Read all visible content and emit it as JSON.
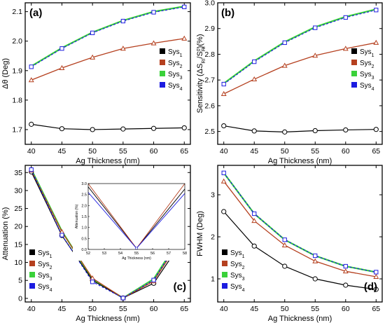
{
  "colors": {
    "sys1": "#000000",
    "sys2": "#b5401f",
    "sys3": "#3ad13a",
    "sys4": "#1c1ce0"
  },
  "chart_data": [
    {
      "type": "line",
      "panel_label": "(a)",
      "xlabel": "Ag Thickness (nm)",
      "ylabel": "Δθ (Deg)",
      "x": [
        40,
        45,
        50,
        55,
        60,
        65
      ],
      "xlim": [
        39,
        66
      ],
      "ylim": [
        1.65,
        2.13
      ],
      "xticks": [
        40,
        45,
        50,
        55,
        60,
        65
      ],
      "yticks": [
        1.7,
        1.8,
        1.9,
        2.0,
        2.1
      ],
      "ytick_labels": [
        "1.7",
        "1.8",
        "1.9",
        "2.0",
        "2.1"
      ],
      "legend": "right",
      "series": [
        {
          "key": "sys1",
          "sub": "1",
          "values": [
            1.718,
            1.703,
            1.7,
            1.702,
            1.704,
            1.706
          ]
        },
        {
          "key": "sys2",
          "sub": "2",
          "values": [
            1.868,
            1.909,
            1.945,
            1.975,
            1.993,
            2.009
          ]
        },
        {
          "key": "sys3",
          "sub": "3",
          "values": [
            1.915,
            1.977,
            2.03,
            2.07,
            2.1,
            2.118
          ]
        },
        {
          "key": "sys4",
          "sub": "4",
          "values": [
            1.913,
            1.975,
            2.028,
            2.068,
            2.098,
            2.116
          ]
        }
      ]
    },
    {
      "type": "line",
      "panel_label": "(b)",
      "xlabel": "Ag Thickness (nm)",
      "ylabel": "Sensitivity (ΔS_RI/S_RI^0)(%)",
      "x": [
        40,
        45,
        50,
        55,
        60,
        65
      ],
      "xlim": [
        39,
        66
      ],
      "ylim": [
        2.45,
        3.0
      ],
      "xticks": [
        40,
        45,
        50,
        55,
        60,
        65
      ],
      "yticks": [
        2.5,
        2.6,
        2.7,
        2.8,
        2.9,
        3.0
      ],
      "ytick_labels": [
        "2.5",
        "2.6",
        "2.7",
        "2.8",
        "2.9",
        "3.0"
      ],
      "legend": "right",
      "series": [
        {
          "key": "sys1",
          "sub": "1",
          "values": [
            2.522,
            2.502,
            2.498,
            2.503,
            2.506,
            2.508
          ]
        },
        {
          "key": "sys2",
          "sub": "2",
          "values": [
            2.646,
            2.703,
            2.756,
            2.795,
            2.822,
            2.845
          ]
        },
        {
          "key": "sys3",
          "sub": "3",
          "values": [
            2.687,
            2.774,
            2.848,
            2.906,
            2.946,
            2.975
          ]
        },
        {
          "key": "sys4",
          "sub": "4",
          "values": [
            2.684,
            2.771,
            2.845,
            2.903,
            2.943,
            2.972
          ]
        }
      ]
    },
    {
      "type": "line",
      "panel_label": "(c)",
      "xlabel": "Ag Thickness (nm)",
      "ylabel": "Attenuation (%)",
      "x": [
        40,
        45,
        50,
        55,
        60,
        65
      ],
      "xlim": [
        39,
        66
      ],
      "ylim": [
        -1,
        37
      ],
      "xticks": [
        40,
        45,
        50,
        55,
        60,
        65
      ],
      "yticks": [
        0,
        5,
        10,
        15,
        20,
        25,
        30,
        35
      ],
      "ytick_labels": [
        "0",
        "5",
        "10",
        "15",
        "20",
        "25",
        "30",
        "35"
      ],
      "legend": "bottom-left",
      "series": [
        {
          "key": "sys1",
          "sub": "1",
          "values": [
            35.2,
            17.5,
            5.0,
            0.1,
            4.2,
            16.8
          ]
        },
        {
          "key": "sys2",
          "sub": "2",
          "values": [
            35.6,
            18.5,
            5.6,
            0.1,
            4.8,
            17.9
          ]
        },
        {
          "key": "sys3",
          "sub": "3",
          "values": [
            35.9,
            18.7,
            5.3,
            0.1,
            5.4,
            18.6
          ]
        },
        {
          "key": "sys4",
          "sub": "4",
          "values": [
            35.8,
            17.6,
            4.6,
            0.1,
            5.1,
            18.5
          ]
        }
      ],
      "inset": {
        "xlabel": "Ag Thickness (nm)",
        "ylabel": "Attenuation (%)",
        "xlim": [
          52,
          58
        ],
        "ylim": [
          0,
          3.0
        ],
        "xticks": [
          52,
          53,
          54,
          55,
          56,
          57,
          58
        ],
        "yticks": [
          0,
          0.5,
          1.0,
          1.5,
          2.0,
          2.5,
          3.0
        ],
        "ytick_labels": [
          "0.0",
          "0.5",
          "1.0",
          "1.5",
          "2.0",
          "2.5",
          "3.0"
        ],
        "series": [
          {
            "key": "sys1",
            "x": [
              52,
              55,
              58
            ],
            "values": [
              2.85,
              0.05,
              2.75
            ]
          },
          {
            "key": "sys2",
            "x": [
              52,
              55,
              58
            ],
            "values": [
              3.0,
              0.05,
              3.0
            ]
          },
          {
            "key": "sys4",
            "x": [
              52,
              55,
              58
            ],
            "values": [
              2.6,
              0.05,
              2.55
            ]
          }
        ]
      }
    },
    {
      "type": "line",
      "panel_label": "(d)",
      "xlabel": "Ag Thickness (nm)",
      "ylabel": "FWHM (Deg)",
      "x": [
        40,
        45,
        50,
        55,
        60,
        65
      ],
      "xlim": [
        39,
        66
      ],
      "ylim": [
        0.45,
        3.7
      ],
      "xticks": [
        40,
        45,
        50,
        55,
        60,
        65
      ],
      "yticks": [
        1,
        2,
        3
      ],
      "ytick_labels": [
        "1",
        "2",
        "3"
      ],
      "legend": "bottom-left",
      "series": [
        {
          "key": "sys1",
          "sub": "1",
          "values": [
            2.6,
            1.78,
            1.3,
            1.0,
            0.85,
            0.75
          ]
        },
        {
          "key": "sys2",
          "sub": "2",
          "values": [
            3.32,
            2.38,
            1.8,
            1.42,
            1.18,
            1.05
          ]
        },
        {
          "key": "sys3",
          "sub": "3",
          "values": [
            3.52,
            2.55,
            1.93,
            1.55,
            1.3,
            1.16
          ]
        },
        {
          "key": "sys4",
          "sub": "4",
          "values": [
            3.52,
            2.55,
            1.93,
            1.55,
            1.3,
            1.16
          ]
        }
      ]
    }
  ]
}
